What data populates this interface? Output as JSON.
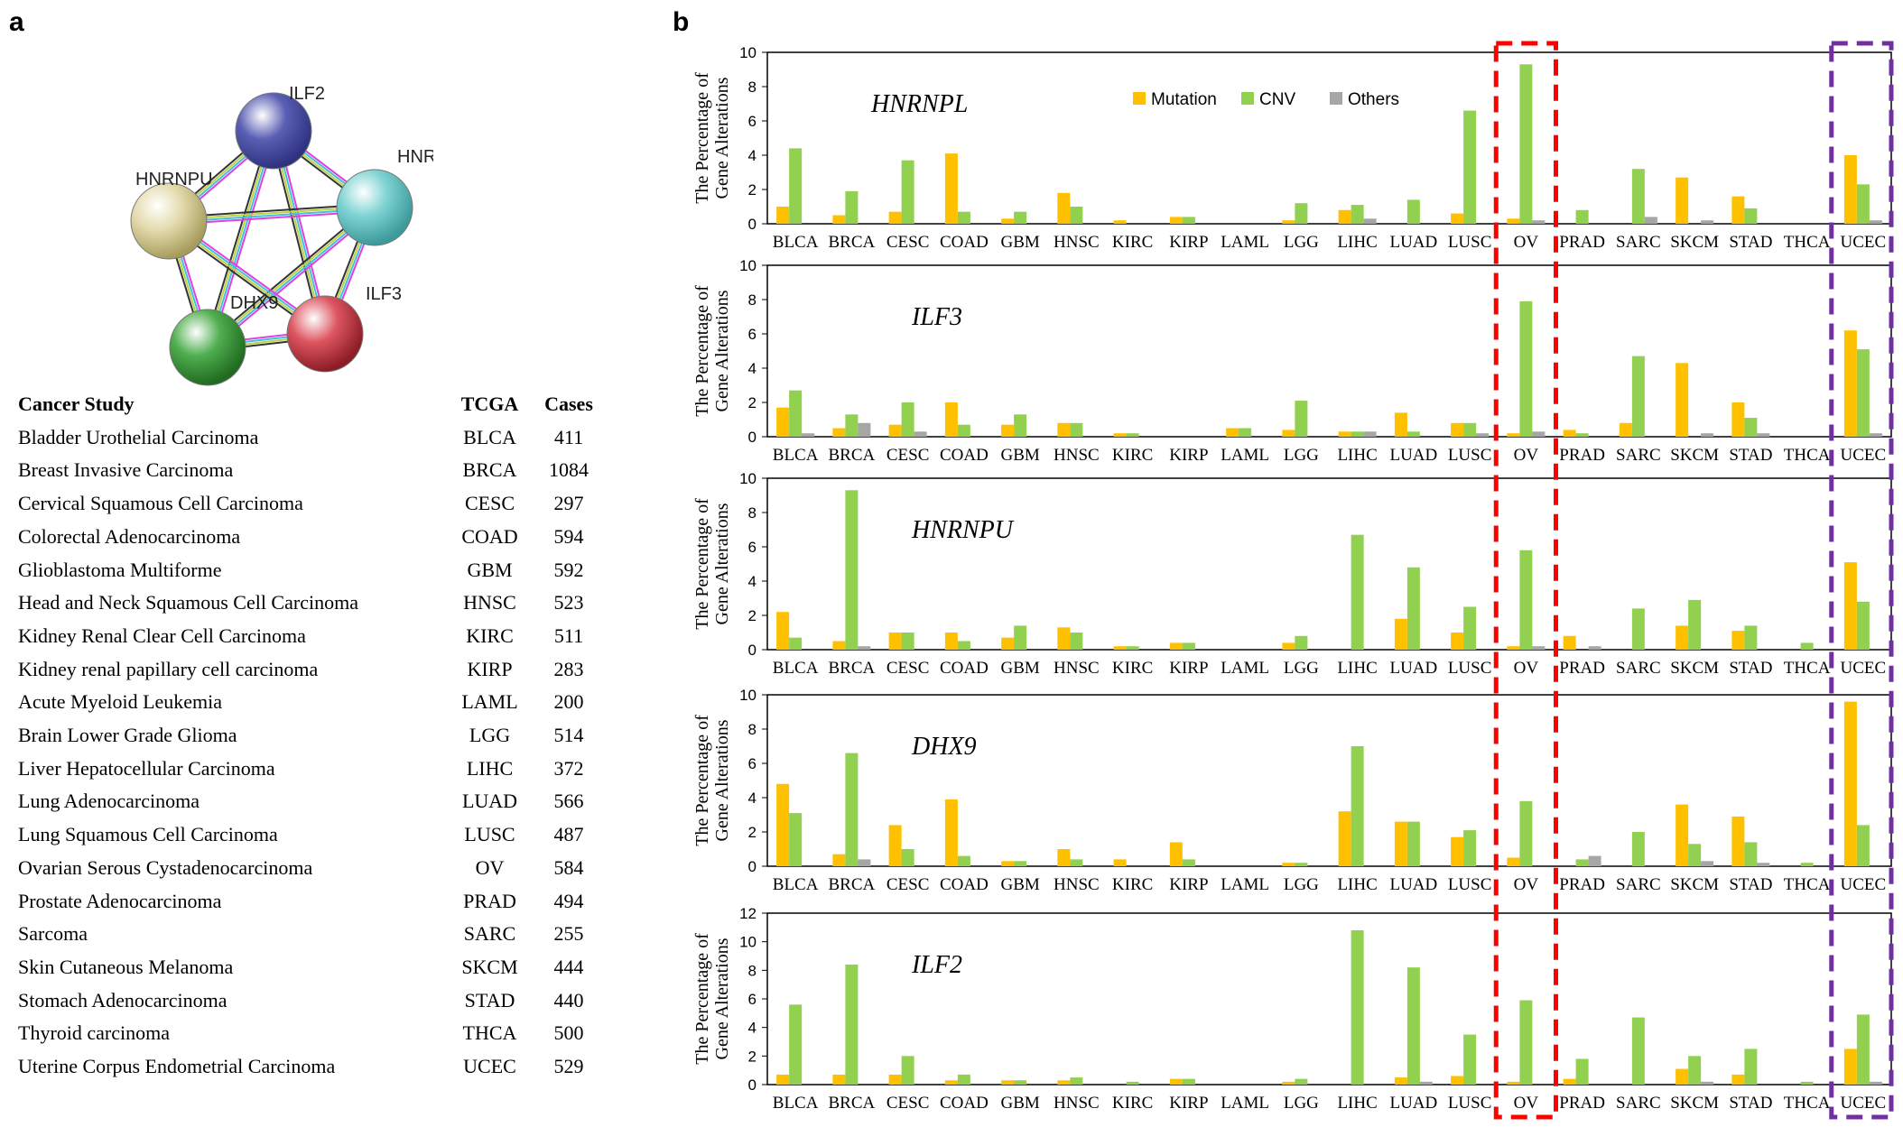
{
  "panel_labels": {
    "a": "a",
    "b": "b"
  },
  "network": {
    "nodes": [
      {
        "label": "ILF2",
        "color": "#5a5fb4"
      },
      {
        "label": "HNRNPL",
        "color": "#7fd3d3"
      },
      {
        "label": "HNRNPU",
        "color": "#e4dcae"
      },
      {
        "label": "DHX9",
        "color": "#4fae4f"
      },
      {
        "label": "ILF3",
        "color": "#dd5560"
      }
    ]
  },
  "table": {
    "headers": {
      "study": "Cancer Study",
      "tcga": "TCGA",
      "cases": "Cases"
    },
    "rows": [
      {
        "study": "Bladder Urothelial Carcinoma",
        "tcga": "BLCA",
        "cases": "411"
      },
      {
        "study": "Breast Invasive Carcinoma",
        "tcga": "BRCA",
        "cases": "1084"
      },
      {
        "study": "Cervical Squamous Cell Carcinoma",
        "tcga": "CESC",
        "cases": "297"
      },
      {
        "study": "Colorectal Adenocarcinoma",
        "tcga": "COAD",
        "cases": "594"
      },
      {
        "study": "Glioblastoma Multiforme",
        "tcga": "GBM",
        "cases": "592"
      },
      {
        "study": "Head and Neck Squamous Cell Carcinoma",
        "tcga": "HNSC",
        "cases": "523"
      },
      {
        "study": "Kidney Renal Clear Cell Carcinoma",
        "tcga": "KIRC",
        "cases": "511"
      },
      {
        "study": "Kidney renal papillary cell carcinoma",
        "tcga": "KIRP",
        "cases": "283"
      },
      {
        "study": "Acute Myeloid Leukemia",
        "tcga": "LAML",
        "cases": "200"
      },
      {
        "study": "Brain Lower Grade Glioma",
        "tcga": "LGG",
        "cases": "514"
      },
      {
        "study": "Liver Hepatocellular Carcinoma",
        "tcga": "LIHC",
        "cases": "372"
      },
      {
        "study": "Lung Adenocarcinoma",
        "tcga": "LUAD",
        "cases": "566"
      },
      {
        "study": "Lung Squamous Cell Carcinoma",
        "tcga": "LUSC",
        "cases": "487"
      },
      {
        "study": "Ovarian Serous Cystadenocarcinoma",
        "tcga": "OV",
        "cases": "584"
      },
      {
        "study": "Prostate Adenocarcinoma",
        "tcga": "PRAD",
        "cases": "494"
      },
      {
        "study": "Sarcoma",
        "tcga": "SARC",
        "cases": "255"
      },
      {
        "study": "Skin Cutaneous Melanoma",
        "tcga": "SKCM",
        "cases": "444"
      },
      {
        "study": "Stomach Adenocarcinoma",
        "tcga": "STAD",
        "cases": "440"
      },
      {
        "study": "Thyroid carcinoma",
        "tcga": "THCA",
        "cases": "500"
      },
      {
        "study": "Uterine Corpus Endometrial Carcinoma",
        "tcga": "UCEC",
        "cases": "529"
      }
    ]
  },
  "colors": {
    "mutation": "#ffc000",
    "cnv": "#92d050",
    "others": "#a6a6a6",
    "ov_box": "#ff0000",
    "ucec_box": "#7030a0"
  },
  "chart_data": [
    {
      "type": "bar",
      "gene": "HNRNPL",
      "ylabel": "The Percentage of Gene Alterations",
      "ylim": [
        0,
        10
      ],
      "yticks": [
        0,
        2,
        4,
        6,
        8,
        10
      ],
      "categories": [
        "BLCA",
        "BRCA",
        "CESC",
        "COAD",
        "GBM",
        "HNSC",
        "KIRC",
        "KIRP",
        "LAML",
        "LGG",
        "LIHC",
        "LUAD",
        "LUSC",
        "OV",
        "PRAD",
        "SARC",
        "SKCM",
        "STAD",
        "THCA",
        "UCEC"
      ],
      "legend": [
        "Mutation",
        "CNV",
        "Others"
      ],
      "series": [
        {
          "name": "Mutation",
          "values": [
            1.0,
            0.5,
            0.7,
            4.1,
            0.3,
            1.8,
            0.2,
            0.4,
            0,
            0.2,
            0.8,
            0,
            0.6,
            0.3,
            0,
            0,
            2.7,
            1.6,
            0,
            4.0
          ]
        },
        {
          "name": "CNV",
          "values": [
            4.4,
            1.9,
            3.7,
            0.7,
            0.7,
            1.0,
            0,
            0.4,
            0,
            1.2,
            1.1,
            1.4,
            6.6,
            9.3,
            0.8,
            3.2,
            0,
            0.9,
            0,
            2.3
          ]
        },
        {
          "name": "Others",
          "values": [
            0,
            0,
            0,
            0,
            0,
            0,
            0,
            0,
            0,
            0,
            0.3,
            0,
            0,
            0.2,
            0,
            0.4,
            0.2,
            0,
            0,
            0.2
          ]
        }
      ]
    },
    {
      "type": "bar",
      "gene": "ILF3",
      "ylabel": "The Percentage of Gene Alterations",
      "ylim": [
        0,
        10
      ],
      "yticks": [
        0,
        2,
        4,
        6,
        8,
        10
      ],
      "categories": [
        "BLCA",
        "BRCA",
        "CESC",
        "COAD",
        "GBM",
        "HNSC",
        "KIRC",
        "KIRP",
        "LAML",
        "LGG",
        "LIHC",
        "LUAD",
        "LUSC",
        "OV",
        "PRAD",
        "SARC",
        "SKCM",
        "STAD",
        "THCA",
        "UCEC"
      ],
      "series": [
        {
          "name": "Mutation",
          "values": [
            1.7,
            0.5,
            0.7,
            2.0,
            0.7,
            0.8,
            0.2,
            0,
            0.5,
            0.4,
            0.3,
            1.4,
            0.8,
            0.2,
            0.4,
            0.8,
            4.3,
            2.0,
            0,
            6.2
          ]
        },
        {
          "name": "CNV",
          "values": [
            2.7,
            1.3,
            2.0,
            0.7,
            1.3,
            0.8,
            0.2,
            0,
            0.5,
            2.1,
            0.3,
            0.3,
            0.8,
            7.9,
            0.2,
            4.7,
            0,
            1.1,
            0,
            5.1
          ]
        },
        {
          "name": "Others",
          "values": [
            0.2,
            0.8,
            0.3,
            0,
            0,
            0,
            0,
            0,
            0,
            0,
            0.3,
            0,
            0.2,
            0.3,
            0,
            0,
            0.2,
            0.2,
            0,
            0.2
          ]
        }
      ]
    },
    {
      "type": "bar",
      "gene": "HNRNPU",
      "ylabel": "The Percentage of Gene Alterations",
      "ylim": [
        0,
        10
      ],
      "yticks": [
        0,
        2,
        4,
        6,
        8,
        10
      ],
      "categories": [
        "BLCA",
        "BRCA",
        "CESC",
        "COAD",
        "GBM",
        "HNSC",
        "KIRC",
        "KIRP",
        "LAML",
        "LGG",
        "LIHC",
        "LUAD",
        "LUSC",
        "OV",
        "PRAD",
        "SARC",
        "SKCM",
        "STAD",
        "THCA",
        "UCEC"
      ],
      "series": [
        {
          "name": "Mutation",
          "values": [
            2.2,
            0.5,
            1.0,
            1.0,
            0.7,
            1.3,
            0.2,
            0.4,
            0,
            0.4,
            0,
            1.8,
            1.0,
            0.2,
            0.8,
            0,
            1.4,
            1.1,
            0,
            5.1
          ]
        },
        {
          "name": "CNV",
          "values": [
            0.7,
            9.3,
            1.0,
            0.5,
            1.4,
            1.0,
            0.2,
            0.4,
            0,
            0.8,
            6.7,
            4.8,
            2.5,
            5.8,
            0,
            2.4,
            2.9,
            1.4,
            0.4,
            2.8
          ]
        },
        {
          "name": "Others",
          "values": [
            0,
            0.2,
            0,
            0,
            0,
            0,
            0,
            0,
            0,
            0,
            0,
            0,
            0,
            0.2,
            0.2,
            0,
            0,
            0,
            0,
            0
          ]
        }
      ]
    },
    {
      "type": "bar",
      "gene": "DHX9",
      "ylabel": "The Percentage of Gene Alterations",
      "ylim": [
        0,
        10
      ],
      "yticks": [
        0,
        2,
        4,
        6,
        8,
        10
      ],
      "categories": [
        "BLCA",
        "BRCA",
        "CESC",
        "COAD",
        "GBM",
        "HNSC",
        "KIRC",
        "KIRP",
        "LAML",
        "LGG",
        "LIHC",
        "LUAD",
        "LUSC",
        "OV",
        "PRAD",
        "SARC",
        "SKCM",
        "STAD",
        "THCA",
        "UCEC"
      ],
      "series": [
        {
          "name": "Mutation",
          "values": [
            4.8,
            0.7,
            2.4,
            3.9,
            0.3,
            1.0,
            0.4,
            1.4,
            0,
            0.2,
            3.2,
            2.6,
            1.7,
            0.5,
            0,
            0,
            3.6,
            2.9,
            0,
            9.6
          ]
        },
        {
          "name": "CNV",
          "values": [
            3.1,
            6.6,
            1.0,
            0.6,
            0.3,
            0.4,
            0,
            0.4,
            0,
            0.2,
            7.0,
            2.6,
            2.1,
            3.8,
            0.4,
            2.0,
            1.3,
            1.4,
            0.2,
            2.4
          ]
        },
        {
          "name": "Others",
          "values": [
            0,
            0.4,
            0,
            0,
            0,
            0,
            0,
            0,
            0,
            0,
            0,
            0,
            0,
            0,
            0.6,
            0,
            0.3,
            0.2,
            0,
            0
          ]
        }
      ]
    },
    {
      "type": "bar",
      "gene": "ILF2",
      "ylabel": "The Percentage of Gene Alterations",
      "ylim": [
        0,
        12
      ],
      "yticks": [
        0,
        2,
        4,
        6,
        8,
        10,
        12
      ],
      "categories": [
        "BLCA",
        "BRCA",
        "CESC",
        "COAD",
        "GBM",
        "HNSC",
        "KIRC",
        "KIRP",
        "LAML",
        "LGG",
        "LIHC",
        "LUAD",
        "LUSC",
        "OV",
        "PRAD",
        "SARC",
        "SKCM",
        "STAD",
        "THCA",
        "UCEC"
      ],
      "series": [
        {
          "name": "Mutation",
          "values": [
            0.7,
            0.7,
            0.7,
            0.3,
            0.3,
            0.3,
            0,
            0.4,
            0,
            0.2,
            0,
            0.5,
            0.6,
            0.2,
            0.4,
            0,
            1.1,
            0.7,
            0,
            2.5
          ]
        },
        {
          "name": "CNV",
          "values": [
            5.6,
            8.4,
            2.0,
            0.7,
            0.3,
            0.5,
            0.2,
            0.4,
            0,
            0.4,
            10.8,
            8.2,
            3.5,
            5.9,
            1.8,
            4.7,
            2.0,
            2.5,
            0.2,
            4.9
          ]
        },
        {
          "name": "Others",
          "values": [
            0,
            0,
            0,
            0,
            0,
            0,
            0,
            0,
            0,
            0,
            0,
            0.2,
            0,
            0,
            0,
            0,
            0.2,
            0,
            0,
            0.2
          ]
        }
      ]
    }
  ]
}
